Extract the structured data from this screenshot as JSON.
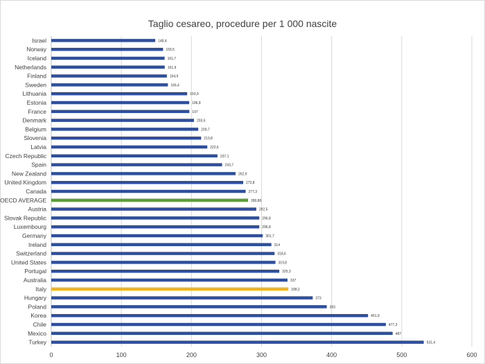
{
  "chart_data": {
    "type": "bar",
    "orientation": "horizontal",
    "title": "Taglio cesareo, procedure per 1 000 nascite",
    "xlim": [
      0,
      600
    ],
    "xticks": [
      "0",
      "100",
      "200",
      "300",
      "400",
      "500",
      "600"
    ],
    "grid": true,
    "categories": [
      "Israel",
      "Norway",
      "Iceland",
      "Netherlands",
      "Finland",
      "Sweden",
      "Lithuania",
      "Estonia",
      "France",
      "Denmark",
      "Belgium",
      "Slovenia",
      "Latvia",
      "Czech Republic",
      "Spain",
      "New Zealand",
      "United Kingdom",
      "Canada",
      "OECD AVERAGE",
      "Austria",
      "Slovak Republic",
      "Luxembourg",
      "Germany",
      "Ireland",
      "Switzerland",
      "United States",
      "Portugal",
      "Australia",
      "Italy",
      "Hungary",
      "Poland",
      "Korea",
      "Chile",
      "Mexico",
      "Turkey"
    ],
    "values": [
      148.4,
      159.5,
      161.7,
      161.9,
      164.9,
      166.4,
      193.9,
      196.8,
      197,
      203.6,
      209.7,
      213.8,
      222.6,
      237.1,
      243.7,
      262.9,
      273.8,
      277.3,
      280.8,
      292.5,
      296.8,
      296.8,
      301.7,
      314,
      318.6,
      319.8,
      325.3,
      337,
      338.2,
      373,
      393,
      451.9,
      477.3,
      487,
      531.4
    ],
    "value_labels": [
      "148,4",
      "159,5",
      "161,7",
      "161,9",
      "164,9",
      "166,4",
      "193,9",
      "196,8",
      "197",
      "203,6",
      "209,7",
      "213,8",
      "222,6",
      "237,1",
      "243,7",
      "262,9",
      "273,8",
      "277,3",
      "280,80",
      "292,5",
      "296,8",
      "296,8",
      "301,7",
      "314",
      "318,6",
      "319,8",
      "325,3",
      "337",
      "338,2",
      "373",
      "393",
      "451,9",
      "477,3",
      "487",
      "531,4"
    ],
    "highlight": {
      "OECD AVERAGE": "#5b9d3a",
      "Italy": "#f0b323"
    },
    "colors": {
      "bar": "#2e4f9f",
      "grid": "#d9d9d9",
      "axis": "#bfbfbf",
      "text": "#404040"
    }
  }
}
